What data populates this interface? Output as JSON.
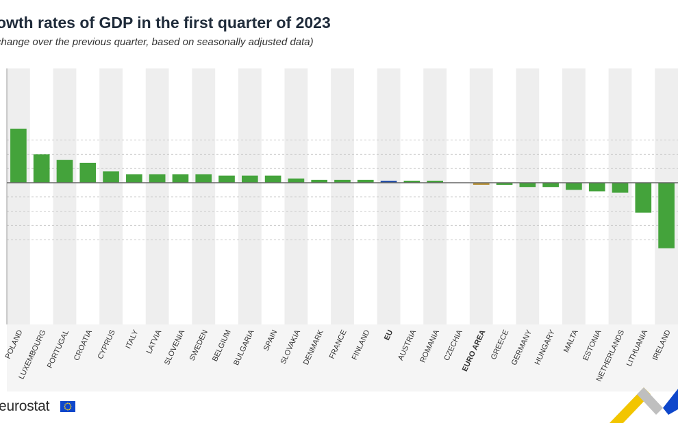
{
  "colors": {
    "bar": "#44a33b",
    "eu": "#2650a8",
    "euro_area": "#b89238",
    "band": "#eeeeee",
    "grid": "#c9c9c9",
    "axis": "#666666"
  },
  "brand": {
    "name": "eurostat",
    "flag_icon": "eu-flag-icon"
  },
  "chart_data": {
    "type": "bar",
    "title": "rowth rates of GDP in the first quarter of 2023",
    "subtitle": "change over the previous quarter, based on seasonally adjusted data)",
    "xlabel": "",
    "ylabel": "",
    "ylim": [
      -2.3,
      2.1
    ],
    "grid": true,
    "categories": [
      "POLAND",
      "LUXEMBOURG",
      "PORTUGAL",
      "CROATIA",
      "CYPRUS",
      "ITALY",
      "LATVIA",
      "SLOVENIA",
      "SWEDEN",
      "BELGIUM",
      "BULGARIA",
      "SPAIN",
      "SLOVAKIA",
      "DENMARK",
      "FRANCE",
      "FINLAND",
      "EU",
      "AUSTRIA",
      "ROMANIA",
      "CZECHIA",
      "EURO AREA",
      "GREECE",
      "GERMANY",
      "HUNGARY",
      "MALTA",
      "ESTONIA",
      "NETHERLANDS",
      "LITHUANIA",
      "IRELAND"
    ],
    "values": [
      1.9,
      1.0,
      0.8,
      0.7,
      0.4,
      0.3,
      0.3,
      0.3,
      0.3,
      0.25,
      0.25,
      0.25,
      0.15,
      0.1,
      0.1,
      0.1,
      0.05,
      0.05,
      0.05,
      0.0,
      -0.05,
      -0.05,
      -0.15,
      -0.15,
      -0.25,
      -0.3,
      -0.35,
      -1.05,
      -2.3
    ],
    "highlight": {
      "EU": "eu",
      "EURO AREA": "euro_area"
    },
    "bold_labels": [
      "EU",
      "EURO AREA"
    ]
  }
}
